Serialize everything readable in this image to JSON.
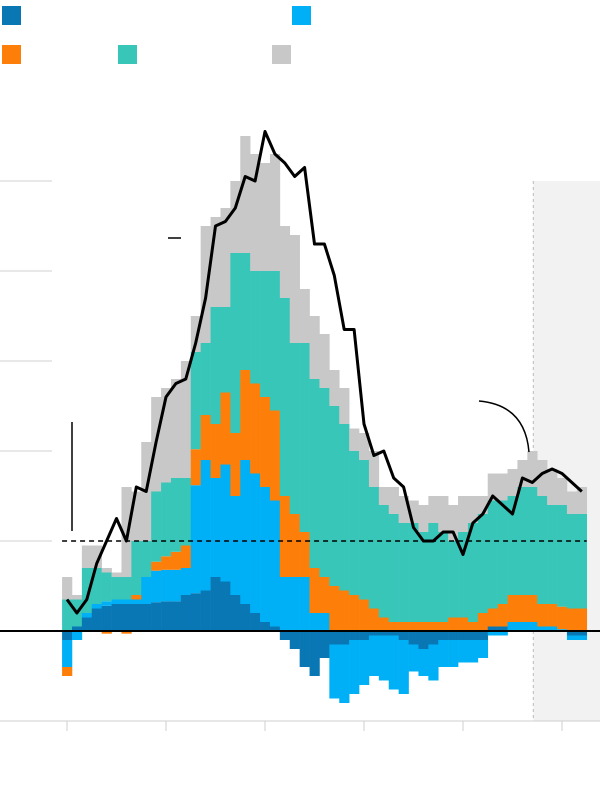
{
  "chart_data": {
    "type": "stacked-bar",
    "x": [
      0,
      1,
      2,
      3,
      4,
      5,
      6,
      7,
      8,
      9,
      10,
      11,
      12,
      13,
      14,
      15,
      16,
      17,
      18,
      19,
      20,
      21,
      22,
      23,
      24,
      25,
      26,
      27,
      28,
      29,
      30,
      31,
      32,
      33,
      34,
      35,
      36,
      37,
      38,
      39,
      40,
      41,
      42,
      43,
      44,
      45,
      46,
      47,
      48,
      49,
      50,
      51,
      52
    ],
    "xlim": [
      -6.77,
      53.84
    ],
    "xticks": [
      0,
      10,
      20,
      30,
      40,
      50
    ],
    "ylim": [
      -1,
      6
    ],
    "yticks": [
      -1,
      0,
      1,
      2,
      3,
      4,
      5
    ],
    "shaded_xlim": [
      47.1,
      53.84
    ],
    "reference_line": 1,
    "series": [
      {
        "color": "#0a77b5",
        "values": [
          -0.1,
          0.05,
          0.15,
          0.25,
          0.28,
          0.3,
          0.3,
          0.3,
          0.3,
          0.32,
          0.33,
          0.33,
          0.4,
          0.42,
          0.45,
          0.6,
          0.55,
          0.4,
          0.3,
          0.2,
          0.1,
          0.05,
          -0.1,
          -0.2,
          -0.4,
          -0.5,
          -0.3,
          -0.15,
          -0.15,
          -0.1,
          -0.1,
          -0.05,
          -0.05,
          -0.05,
          -0.1,
          -0.15,
          -0.2,
          -0.15,
          -0.1,
          -0.1,
          -0.1,
          -0.1,
          -0.1,
          0.05,
          0.05,
          0,
          0,
          0,
          0,
          0,
          0,
          -0.05,
          -0.05
        ]
      },
      {
        "color": "#00b0f6",
        "values": [
          -0.3,
          -0.1,
          0.05,
          0.05,
          0.05,
          0.05,
          0.05,
          0.05,
          0.3,
          0.35,
          0.35,
          0.35,
          0.3,
          1.2,
          1.45,
          1.1,
          1.3,
          1.1,
          1.6,
          1.55,
          1.5,
          1.4,
          0.6,
          0.6,
          0.6,
          0.2,
          0.2,
          -0.6,
          -0.65,
          -0.6,
          -0.5,
          -0.45,
          -0.5,
          -0.6,
          -0.6,
          -0.3,
          -0.3,
          -0.4,
          -0.3,
          -0.3,
          -0.25,
          -0.25,
          -0.2,
          -0.05,
          -0.05,
          0.1,
          0.1,
          0.1,
          0.05,
          0.05,
          0.02,
          -0.05,
          -0.05
        ]
      },
      {
        "color": "#fd7f0a",
        "values": [
          -0.1,
          0,
          0,
          0,
          -0.03,
          0,
          -0.03,
          0.05,
          0,
          0.1,
          0.15,
          0.2,
          0.25,
          0.4,
          0.5,
          0.6,
          0.8,
          0.7,
          1.0,
          1.0,
          1.0,
          1.0,
          0.9,
          0.7,
          0.5,
          0.5,
          0.4,
          0.5,
          0.45,
          0.4,
          0.35,
          0.25,
          0.15,
          0.1,
          0.1,
          0.1,
          0.1,
          0.1,
          0.1,
          0.15,
          0.15,
          0.1,
          0.2,
          0.2,
          0.25,
          0.3,
          0.3,
          0.3,
          0.25,
          0.25,
          0.25,
          0.25,
          0.25
        ]
      },
      {
        "color": "#38c6b9",
        "values": [
          0.35,
          0.3,
          0.5,
          0.4,
          0.32,
          0.25,
          0.25,
          0.6,
          0.4,
          0.78,
          0.82,
          0.82,
          0.75,
          1.08,
          0.8,
          1.3,
          0.95,
          2.0,
          1.3,
          1.25,
          1.4,
          1.55,
          2.2,
          1.9,
          2.1,
          2.1,
          2.1,
          2.0,
          1.85,
          1.6,
          1.55,
          1.35,
          1.25,
          1.2,
          1.1,
          1.1,
          1.0,
          1.1,
          1.0,
          0.85,
          0.95,
          1.1,
          1.1,
          1.2,
          1.15,
          1.1,
          1.2,
          1.2,
          1.2,
          1.1,
          1.13,
          1.05,
          1.05
        ]
      },
      {
        "color": "#c8c8c8",
        "values": [
          0.25,
          0.05,
          0.25,
          0.25,
          0.05,
          0.05,
          1.0,
          0.55,
          1.1,
          1.05,
          1.05,
          1.1,
          1.3,
          0.4,
          1.3,
          1.0,
          1.1,
          0.8,
          1.3,
          1.3,
          1.2,
          1.3,
          0.8,
          1.2,
          0.6,
          0.7,
          0.6,
          0.4,
          0.4,
          0.25,
          0.3,
          0.4,
          0.2,
          0.3,
          0.3,
          0.25,
          0.3,
          0.3,
          0.4,
          0.4,
          0.4,
          0.3,
          0.2,
          0.3,
          0.3,
          0.3,
          0.3,
          0.4,
          0.4,
          0.4,
          0.3,
          0.25,
          0.3
        ]
      }
    ],
    "line": {
      "color": "#000000",
      "values": [
        0.35,
        0.2,
        0.35,
        0.75,
        1.0,
        1.25,
        1.0,
        1.6,
        1.55,
        2.1,
        2.6,
        2.75,
        2.8,
        3.2,
        3.7,
        4.5,
        4.55,
        4.7,
        5.05,
        5.0,
        5.55,
        5.3,
        5.2,
        5.05,
        5.15,
        4.3,
        4.3,
        3.95,
        3.35,
        3.35,
        2.3,
        1.95,
        2.0,
        1.7,
        1.6,
        1.15,
        1.0,
        1.0,
        1.1,
        1.1,
        0.85,
        1.2,
        1.3,
        1.5,
        1.4,
        1.3,
        1.7,
        1.65,
        1.75,
        1.8,
        1.75,
        1.65,
        1.55
      ]
    }
  }
}
